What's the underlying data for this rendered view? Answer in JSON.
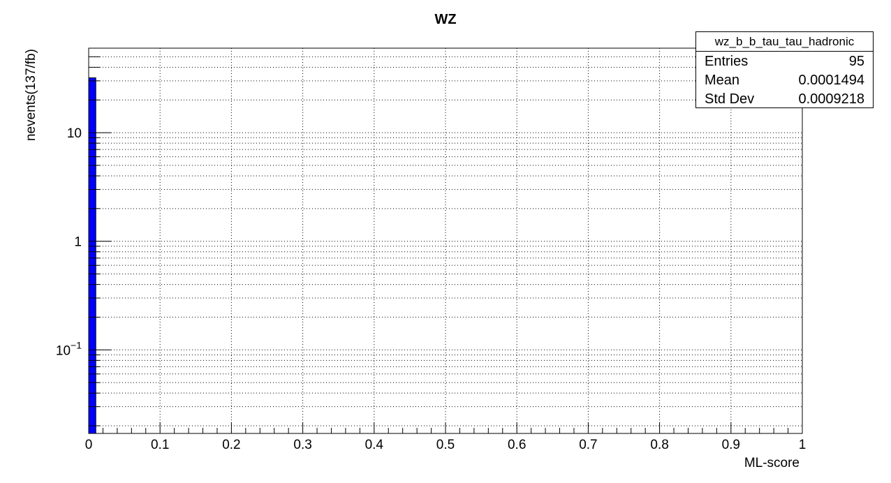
{
  "chart_data": {
    "type": "bar",
    "title": "WZ",
    "xlabel": "ML-score",
    "ylabel": "nevents(137/fb)",
    "y_scale": "log",
    "xlim": [
      0,
      1
    ],
    "ylim": [
      0.017,
      60
    ],
    "grid": true,
    "bar_color": "#0000ff",
    "x_tick_labels": [
      "0",
      "0.1",
      "0.2",
      "0.3",
      "0.4",
      "0.5",
      "0.6",
      "0.7",
      "0.8",
      "0.9",
      "1"
    ],
    "y_tick_labels": [
      {
        "value": 0.1,
        "base": "10",
        "exp": "−1"
      },
      {
        "value": 1,
        "base": "1",
        "exp": ""
      },
      {
        "value": 10,
        "base": "10",
        "exp": ""
      }
    ],
    "series": [
      {
        "name": "wz_b_b_tau_tau_hadronic",
        "bins": [
          {
            "x_low": 0.0,
            "x_high": 0.01,
            "value": 32
          }
        ]
      }
    ]
  },
  "stats": {
    "title": "wz_b_b_tau_tau_hadronic",
    "rows": [
      {
        "label": "Entries",
        "value": "95"
      },
      {
        "label": "Mean",
        "value": "0.0001494"
      },
      {
        "label": "Std Dev",
        "value": "0.0009218"
      }
    ]
  }
}
